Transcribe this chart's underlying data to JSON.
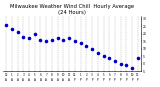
{
  "title": "Milwaukee Weather Wind Chill  Hourly Average\n(24 Hours)",
  "title_fontsize": 3.8,
  "x_hours": [
    0,
    1,
    2,
    3,
    4,
    5,
    6,
    7,
    8,
    9,
    10,
    11,
    12,
    13,
    14,
    15,
    16,
    17,
    18,
    19,
    20,
    21,
    22,
    23
  ],
  "y_values": [
    26,
    23,
    21,
    18,
    17,
    20,
    16,
    15,
    16,
    17,
    16,
    17,
    15,
    14,
    12,
    10,
    7,
    5,
    4,
    2,
    0,
    -1,
    -3,
    4
  ],
  "dot_color": "#0000cc",
  "dot_size": 2.5,
  "grid_color": "#aaaaaa",
  "bg_color": "#ffffff",
  "ylim": [
    -5,
    32
  ],
  "y_ticks": [
    -5,
    0,
    5,
    10,
    15,
    20,
    25,
    30
  ],
  "y_tick_labels": [
    "-5",
    "0",
    "5",
    "10",
    "15",
    "20",
    "25",
    "30"
  ],
  "x_tick_labels": [
    "12",
    "1",
    "2",
    "3",
    "4",
    "5",
    "6",
    "7",
    "8",
    "9",
    "10",
    "11",
    "12",
    "1",
    "2",
    "3",
    "4",
    "5",
    "6",
    "7",
    "8",
    "9",
    "10",
    "11"
  ],
  "x_tick_sublabels": [
    "A",
    "A",
    "A",
    "A",
    "A",
    "A",
    "A",
    "A",
    "A",
    "A",
    "A",
    "A",
    "P",
    "P",
    "P",
    "P",
    "P",
    "P",
    "P",
    "P",
    "P",
    "P",
    "P",
    "P"
  ]
}
